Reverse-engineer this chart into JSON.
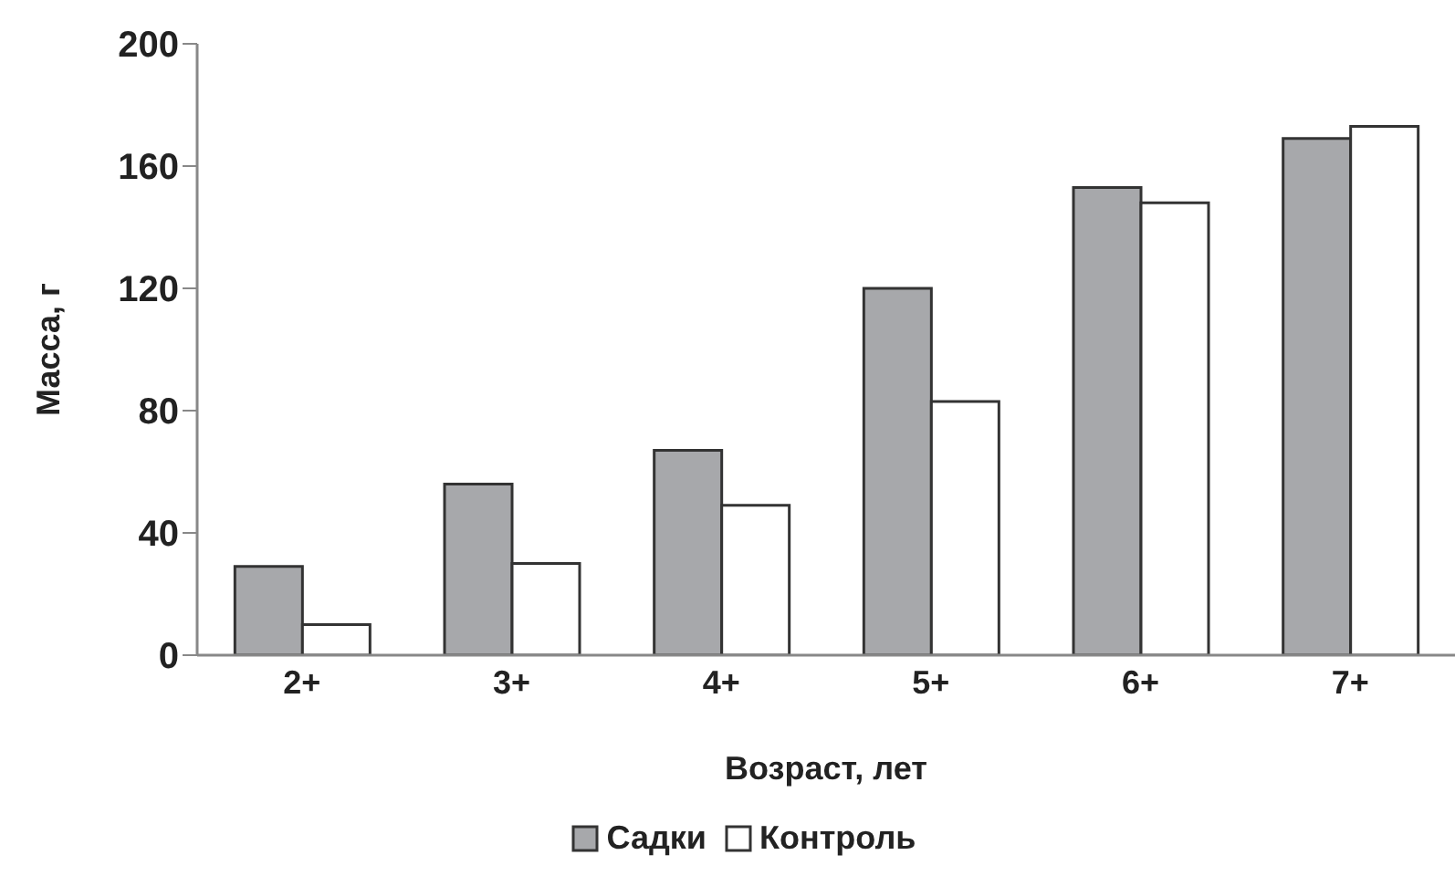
{
  "chart_data": {
    "type": "bar",
    "xlabel": "Возраст, лет",
    "ylabel": "Масса, г",
    "categories": [
      "2+",
      "3+",
      "4+",
      "5+",
      "6+",
      "7+"
    ],
    "series": [
      {
        "name": "Садки",
        "color": "#a7a8ab",
        "values": [
          29,
          56,
          67,
          120,
          153,
          169
        ]
      },
      {
        "name": "Контроль",
        "color": "#ffffff",
        "values": [
          10,
          30,
          49,
          83,
          148,
          173
        ]
      }
    ],
    "ylim": [
      0,
      200
    ],
    "yticks": [
      0,
      40,
      80,
      120,
      160,
      200
    ],
    "grid": false,
    "legend": "bottom"
  }
}
